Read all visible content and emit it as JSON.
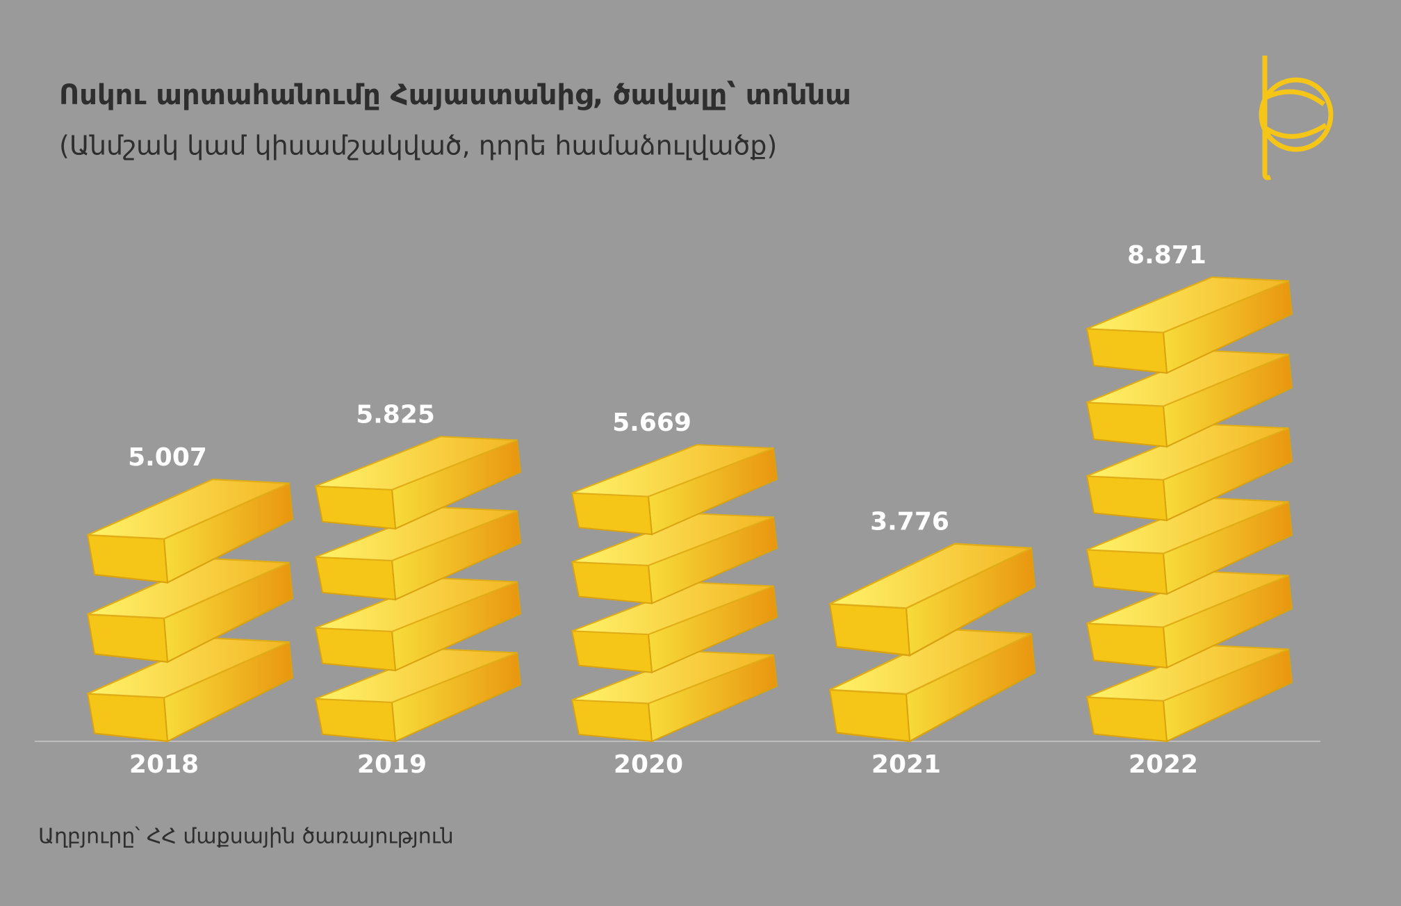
{
  "chart_data": {
    "type": "pictorial-bar",
    "title": "Ոսկու արտահանումը Հայաստանից, ծավալը՝ տոննա",
    "subtitle": "(Անմշակ կամ կիսամշակված, դորե համաձուլվածք)",
    "source": "Աղբյուրը՝ ՀՀ մաքսային ծառայություն",
    "categories": [
      "2018",
      "2019",
      "2020",
      "2021",
      "2022"
    ],
    "values": [
      5.007,
      5.825,
      5.669,
      3.776,
      8.871
    ],
    "color": "#f5c518"
  }
}
